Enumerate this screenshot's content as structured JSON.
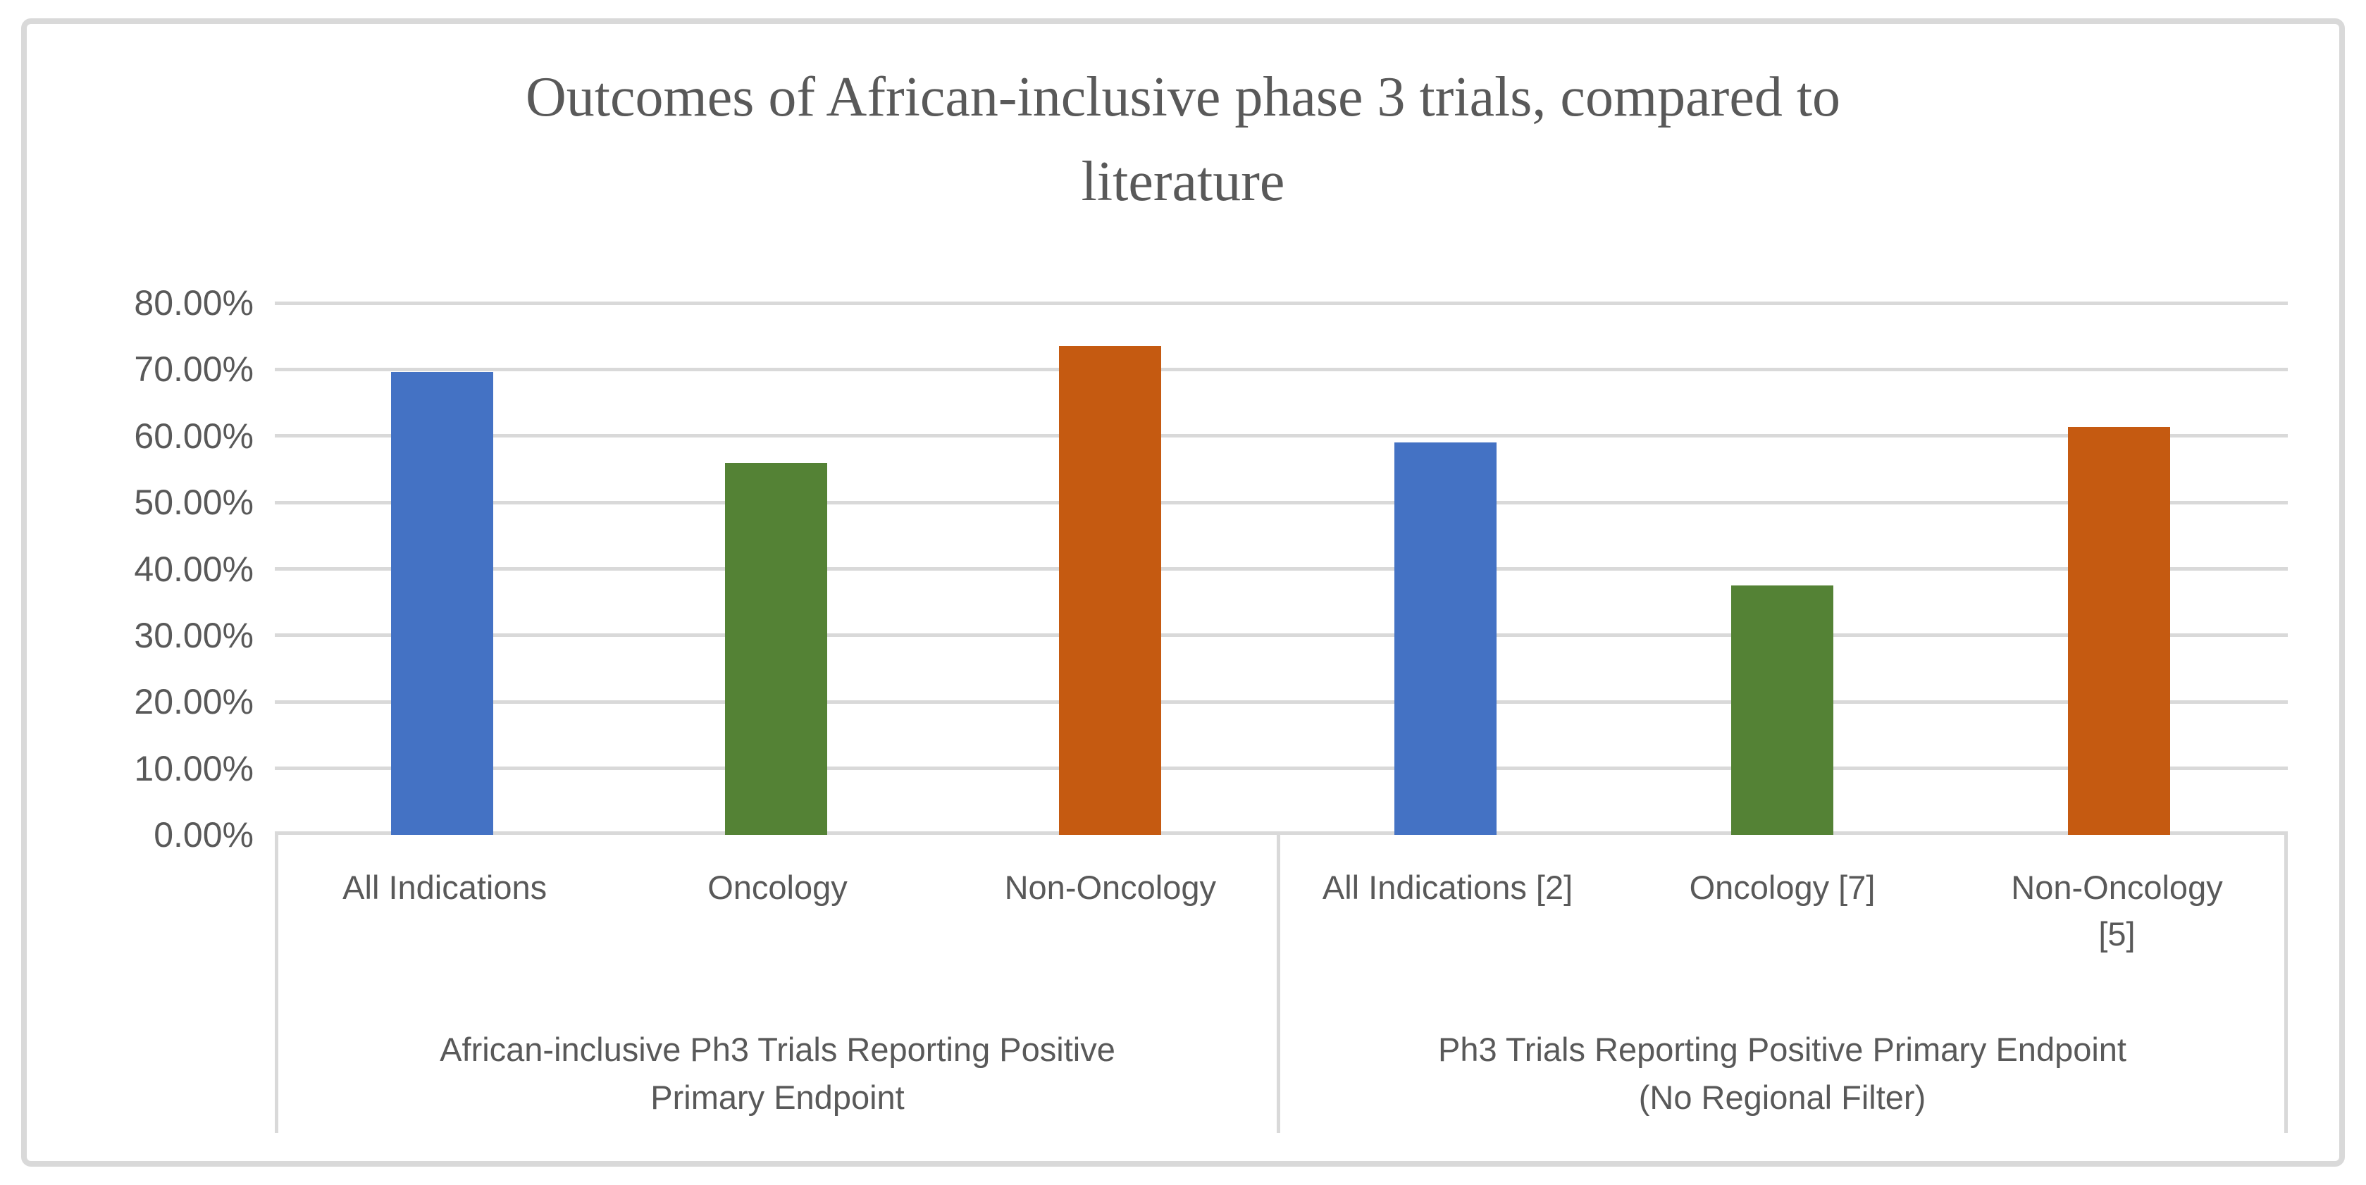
{
  "title": {
    "text": "Outcomes of African-inclusive phase 3 trials, compared to\nliterature"
  },
  "chart_data": {
    "type": "bar",
    "title": "Outcomes of African-inclusive phase 3 trials, compared to literature",
    "xlabel": "",
    "ylabel": "",
    "y_axis": {
      "min": 0,
      "max": 80,
      "unit": "percent",
      "tick_labels": [
        "80.00%",
        "70.00%",
        "60.00%",
        "50.00%",
        "40.00%",
        "30.00%",
        "20.00%",
        "10.00%",
        "0.00%"
      ]
    },
    "grid": true,
    "legend": false,
    "series_colors": [
      "#4472C4",
      "#548235",
      "#C55A11"
    ],
    "groups": [
      {
        "label": "African-inclusive Ph3 Trials Reporting Positive\nPrimary Endpoint",
        "categories": [
          "All Indications",
          "Oncology",
          "Non-Oncology"
        ],
        "values_pct": [
          69.6,
          56.0,
          73.5
        ]
      },
      {
        "label": "Ph3 Trials Reporting Positive Primary Endpoint\n(No Regional Filter)",
        "categories": [
          "All Indications [2]",
          "Oncology [7]",
          "Non-Oncology\n[5]"
        ],
        "values_pct": [
          59.0,
          37.5,
          61.4
        ]
      }
    ],
    "colors": {
      "gridline": "#D9D9D9",
      "frame_border": "#D9D9D9",
      "text": "#595959"
    }
  }
}
